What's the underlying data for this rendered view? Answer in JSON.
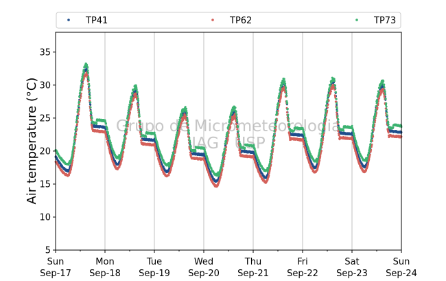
{
  "chart_data": {
    "type": "scatter",
    "ylabel": "Air temperature (°C)",
    "ylim": [
      5,
      38
    ],
    "yticks": [
      5,
      10,
      15,
      20,
      25,
      30,
      35
    ],
    "xlim": [
      "2017-09-17",
      "2017-09-24"
    ],
    "xticks": [
      {
        "date": "2017-09-17",
        "day": "Sun",
        "date_label": "Sep-17"
      },
      {
        "date": "2017-09-18",
        "day": "Mon",
        "date_label": "Sep-18"
      },
      {
        "date": "2017-09-19",
        "day": "Tue",
        "date_label": "Sep-19"
      },
      {
        "date": "2017-09-20",
        "day": "Wed",
        "date_label": "Sep-20"
      },
      {
        "date": "2017-09-21",
        "day": "Thu",
        "date_label": "Sep-21"
      },
      {
        "date": "2017-09-22",
        "day": "Fri",
        "date_label": "Sep-22"
      },
      {
        "date": "2017-09-23",
        "day": "Sat",
        "date_label": "Sep-23"
      },
      {
        "date": "2017-09-24",
        "day": "Sun",
        "date_label": "Sep-24"
      }
    ],
    "grid": "x-major",
    "legend_position": "top",
    "watermark": [
      "Grupo de Micrometeorologia",
      "IAG / USP"
    ],
    "daily": [
      {
        "date": "2017-09-17",
        "min": 17.0,
        "max": 32.5
      },
      {
        "date": "2017-09-18",
        "min": 18.0,
        "max": 29.2
      },
      {
        "date": "2017-09-19",
        "min": 16.9,
        "max": 26.0
      },
      {
        "date": "2017-09-20",
        "min": 15.4,
        "max": 26.0
      },
      {
        "date": "2017-09-21",
        "min": 16.0,
        "max": 30.2
      },
      {
        "date": "2017-09-22",
        "min": 17.5,
        "max": 30.5
      },
      {
        "date": "2017-09-23",
        "min": 17.6,
        "max": 30.0
      }
    ],
    "series": [
      {
        "name": "TP41",
        "color": "#1f4e8c",
        "offset": 0.0
      },
      {
        "name": "TP62",
        "color": "#d4605a",
        "offset": -0.7
      },
      {
        "name": "TP73",
        "color": "#3cb371",
        "offset": 0.5
      }
    ]
  }
}
